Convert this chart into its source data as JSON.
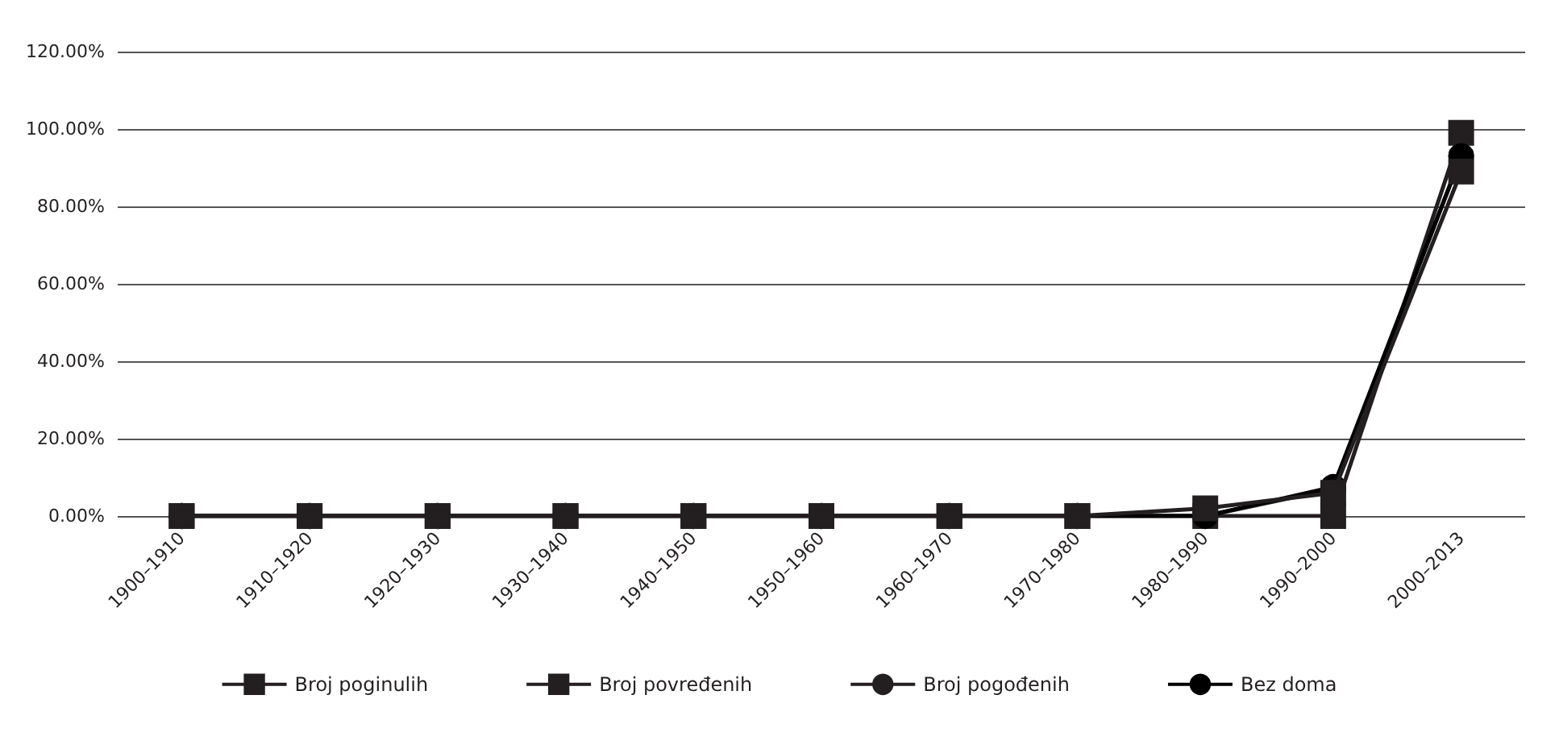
{
  "chart_data": {
    "type": "line",
    "categories": [
      "1900–1910",
      "1910–1920",
      "1920–1930",
      "1930–1940",
      "1940–1950",
      "1950–1960",
      "1960–1970",
      "1970–1980",
      "1980–1990",
      "1990–2000",
      "2000–2013"
    ],
    "series": [
      {
        "name": "Broj poginulih",
        "color": "#231f20",
        "marker": "square",
        "values": [
          0,
          0,
          0,
          0,
          0,
          0,
          0,
          0,
          2,
          6,
          89
        ]
      },
      {
        "name": "Broj povređenih",
        "color": "#231f20",
        "marker": "square",
        "values": [
          0,
          0,
          0,
          0,
          0,
          0,
          0,
          0,
          0,
          0,
          99
        ]
      },
      {
        "name": "Broj pogođenih",
        "color": "#231f20",
        "marker": "circle",
        "values": [
          0,
          0,
          0,
          0,
          0,
          0,
          0,
          0,
          0,
          7,
          93
        ]
      },
      {
        "name": "Bez doma",
        "color": "#000000",
        "marker": "circle",
        "values": [
          0,
          0,
          0,
          0,
          0,
          0,
          0,
          0,
          0,
          7.5,
          93
        ]
      }
    ],
    "ylim": [
      0,
      120
    ],
    "yticks": [
      {
        "value": 0,
        "label": "0.00%"
      },
      {
        "value": 20,
        "label": "20.00%"
      },
      {
        "value": 40,
        "label": "40.00%"
      },
      {
        "value": 60,
        "label": "60.00%"
      },
      {
        "value": 80,
        "label": "80.00%"
      },
      {
        "value": 100,
        "label": "100.00%"
      },
      {
        "value": 120,
        "label": "120.00%"
      }
    ],
    "grid": "y",
    "legend": "bottom",
    "line_style": "solid"
  }
}
